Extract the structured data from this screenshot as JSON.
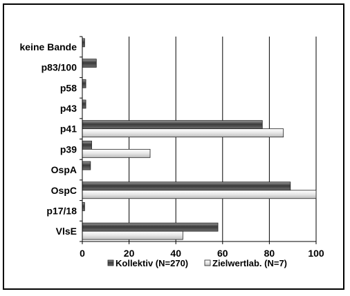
{
  "chart_data": {
    "type": "bar",
    "orientation": "horizontal",
    "categories": [
      "keine Bande",
      "p83/100",
      "p58",
      "p43",
      "p41",
      "p39",
      "OspA",
      "OspC",
      "p17/18",
      "VlsE"
    ],
    "series": [
      {
        "name": "Kollektiv (N=270)",
        "values": [
          1,
          6,
          1.5,
          1.5,
          77,
          4,
          3.5,
          89,
          1,
          58
        ]
      },
      {
        "name": "Zielwertlab. (N=7)",
        "values": [
          0,
          0,
          0,
          0,
          86,
          29,
          0,
          100,
          0,
          43
        ]
      }
    ],
    "xlim": [
      0,
      100
    ],
    "xticks": [
      0,
      20,
      40,
      60,
      80,
      100
    ],
    "grid": "vertical",
    "legend_position": "bottom",
    "title": "",
    "xlabel": "",
    "ylabel": "",
    "colors": {
      "Kollektiv (N=270)": "#5a5a5a",
      "Zielwertlab. (N=7)": "#f2f2f2"
    }
  }
}
